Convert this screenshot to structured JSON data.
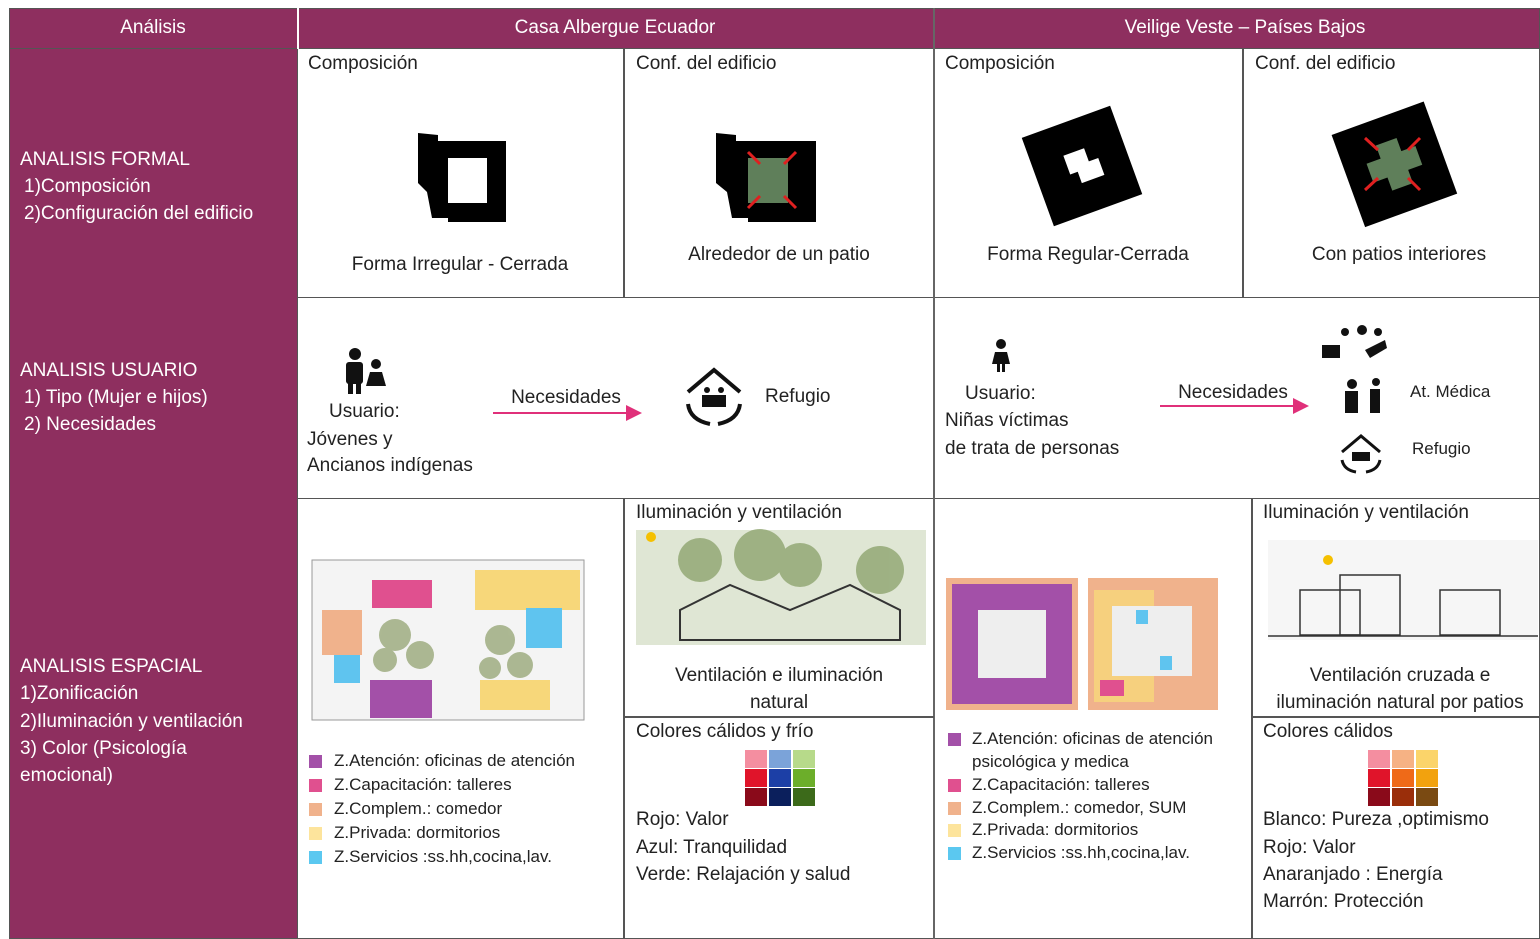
{
  "header": [
    "Análisis",
    "Casa Albergue Ecuador",
    "Veilige Veste – Países Bajos"
  ],
  "formal": {
    "label": [
      "ANALISIS FORMAL",
      "1)Composición",
      "2)Configuración del edificio"
    ],
    "cells": [
      {
        "title": "Composición",
        "caption": "Forma Irregular - Cerrada"
      },
      {
        "title": "Conf. del edificio",
        "caption": "Alrededor de un patio"
      },
      {
        "title": "Composición",
        "caption": "Forma Regular-Cerrada"
      },
      {
        "title": "Conf. del edificio",
        "caption": "Con patios interiores"
      }
    ]
  },
  "usuario": {
    "label": [
      "ANALISIS USUARIO",
      "1)  Tipo (Mujer e hijos)",
      "2)  Necesidades"
    ],
    "ecuador": {
      "user": [
        "Usuario:",
        "Jóvenes y",
        "Ancianos indígenas"
      ],
      "arrow": "Necesidades",
      "needs": [
        "Refugio"
      ]
    },
    "paises": {
      "user": [
        "Usuario:",
        "Niñas víctimas",
        "de trata de personas"
      ],
      "arrow": "Necesidades",
      "needs": [
        "At. Médica",
        "Refugio"
      ]
    }
  },
  "espacial": {
    "label": [
      "ANALISIS ESPACIAL",
      "1)Zonificación",
      "2)Iluminación y ventilación",
      "3) Color (Psicología",
      "emocional)"
    ],
    "ecuador": {
      "legend": [
        "Z.Atención: oficinas de atención",
        "Z.Capacitación: talleres",
        "Z.Complem.: comedor",
        "Z.Privada: dormitorios",
        "Z.Servicios :ss.hh,cocina,lav."
      ],
      "light_title": "Iluminación y ventilación",
      "light_caption": [
        "Ventilación e iluminación",
        "natural"
      ],
      "color_title": "Colores cálidos y frío",
      "color_notes": [
        "Rojo: Valor",
        "Azul: Tranquilidad",
        "Verde: Relajación y salud"
      ]
    },
    "paises": {
      "legend": [
        "Z.Atención: oficinas de atención",
        "psicológica y medica",
        "Z.Capacitación: talleres",
        "Z.Complem.: comedor, SUM",
        "Z.Privada: dormitorios",
        "Z.Servicios :ss.hh,cocina,lav."
      ],
      "light_title": "Iluminación y ventilación",
      "light_caption": [
        "Ventilación cruzada e",
        "iluminación natural por patios"
      ],
      "color_title": "Colores cálidos",
      "color_notes": [
        "Blanco: Pureza ,optimismo",
        "Rojo: Valor",
        "Anaranjado : Energía",
        "Marrón: Protección"
      ]
    }
  }
}
